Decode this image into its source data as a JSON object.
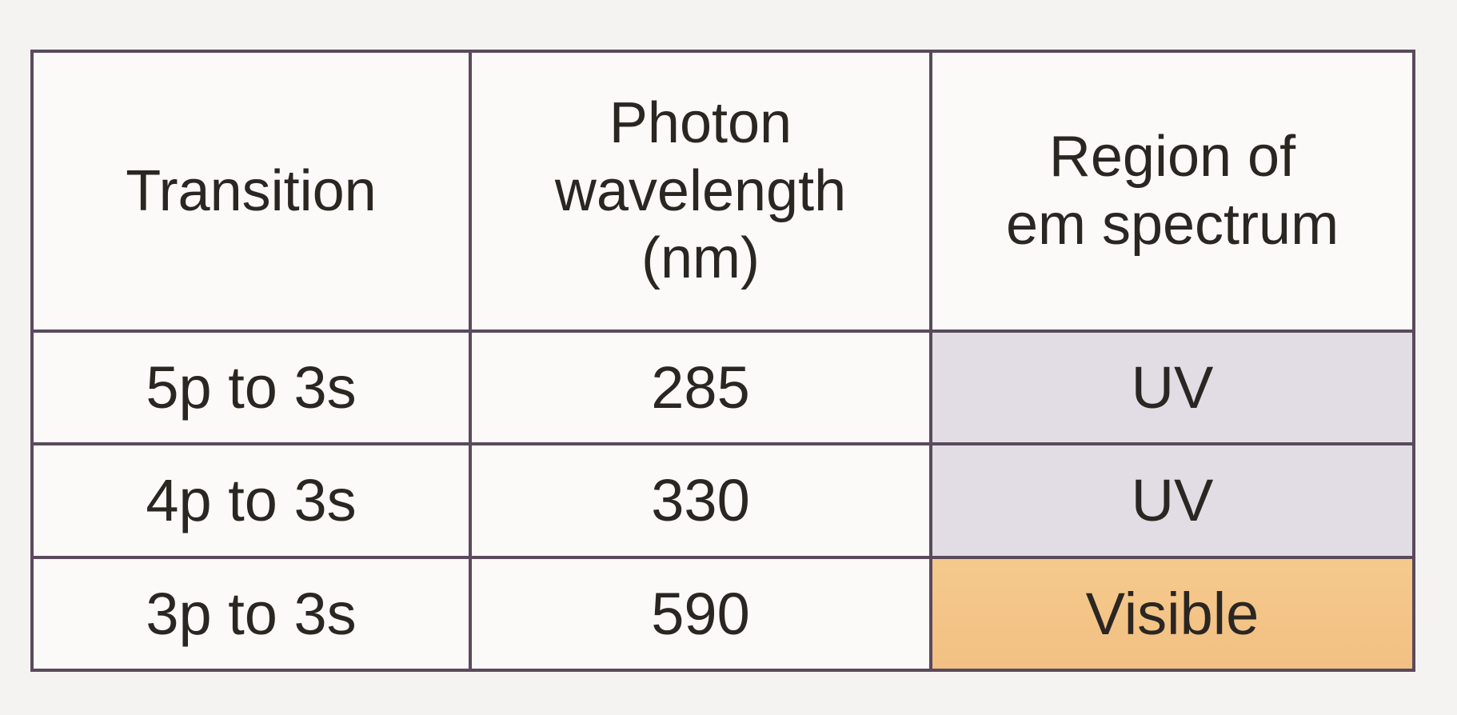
{
  "table": {
    "headers": [
      {
        "lines": [
          "Transition"
        ]
      },
      {
        "lines": [
          "Photon",
          "wavelength",
          "(nm)"
        ]
      },
      {
        "lines": [
          "Region of",
          "em spectrum"
        ]
      }
    ],
    "rows": [
      {
        "transition": "5p to 3s",
        "wavelength": "285",
        "region": "UV"
      },
      {
        "transition": "4p to 3s",
        "wavelength": "330",
        "region": "UV"
      },
      {
        "transition": "3p to 3s",
        "wavelength": "590",
        "region": "Visible"
      }
    ]
  },
  "colors": {
    "border": "#5a4a5c",
    "uv_cell": "#e2dde4",
    "visible_cell": "#f2c083",
    "paper": "#f4f3f1"
  }
}
